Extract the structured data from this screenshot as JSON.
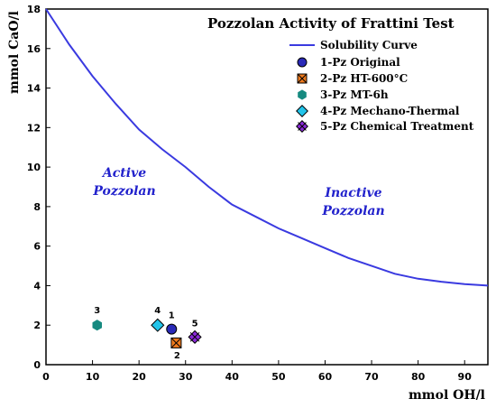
{
  "chart_data": {
    "type": "scatter",
    "title": "Pozzolan Activity of Frattini Test",
    "xlabel": "mmol OH/l",
    "ylabel": "mmol CaO/l",
    "xlim": [
      0,
      95
    ],
    "ylim": [
      0,
      18
    ],
    "xticks": [
      "0",
      "10",
      "20",
      "30",
      "40",
      "50",
      "60",
      "70",
      "80",
      "90"
    ],
    "yticks": [
      "0",
      "2",
      "4",
      "6",
      "8",
      "10",
      "12",
      "14",
      "16",
      "18"
    ],
    "grid": false,
    "legend_position": "top-right",
    "regions": {
      "active": [
        "Active",
        "Pozzolan"
      ],
      "inactive": [
        "Inactive",
        "Pozzolan"
      ]
    },
    "curve": {
      "name": "Solubility Curve",
      "color": "#3a3ae0",
      "x": [
        0,
        5,
        10,
        15,
        20,
        25,
        30,
        35,
        40,
        45,
        50,
        55,
        60,
        65,
        70,
        75,
        80,
        85,
        90,
        95
      ],
      "y": [
        18,
        16.2,
        14.6,
        13.2,
        11.9,
        10.9,
        10.0,
        9.0,
        8.1,
        7.5,
        6.9,
        6.4,
        5.9,
        5.4,
        5.0,
        4.6,
        4.35,
        4.2,
        4.08,
        4.0
      ]
    },
    "series": [
      {
        "name": "1-Pz Original",
        "label": "1",
        "x": 27,
        "y": 1.8,
        "marker": "circle",
        "color": "#2a2ab8"
      },
      {
        "name": "2-Pz HT-600°C",
        "label": "2",
        "x": 28,
        "y": 1.1,
        "marker": "square-x",
        "color": "#f07b1e"
      },
      {
        "name": "3-Pz MT-6h",
        "label": "3",
        "x": 11,
        "y": 2.0,
        "marker": "hexagon",
        "color": "#168a80"
      },
      {
        "name": "4-Pz Mechano-Thermal",
        "label": "4",
        "x": 24,
        "y": 2.0,
        "marker": "diamond",
        "color": "#22c4ea"
      },
      {
        "name": "5-Pz Chemical Treatment",
        "label": "5",
        "x": 32,
        "y": 1.4,
        "marker": "diamond-x",
        "color": "#8a2ad8"
      }
    ]
  }
}
